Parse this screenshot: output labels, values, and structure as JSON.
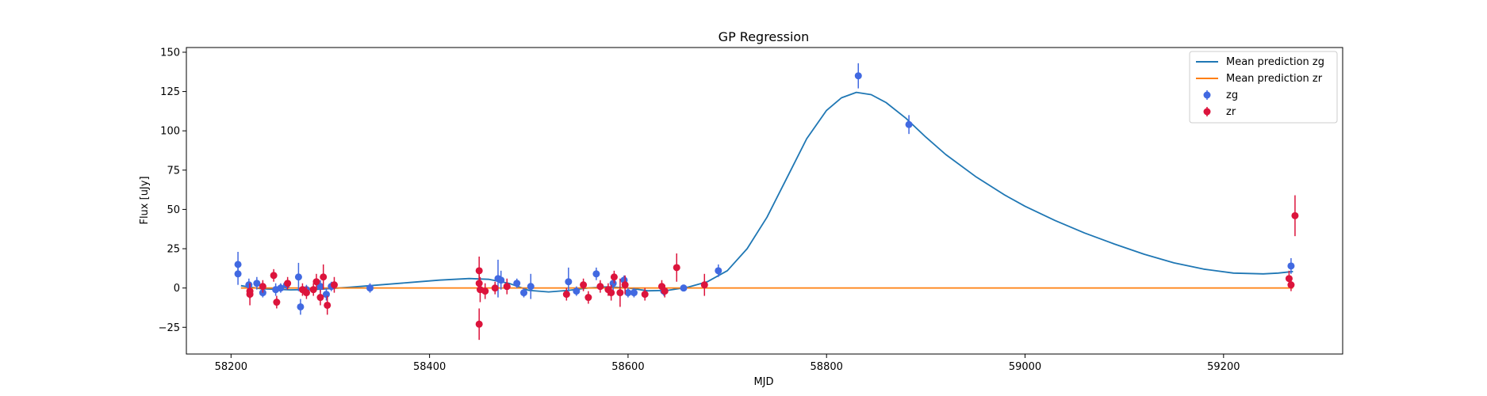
{
  "chart_data": {
    "type": "scatter",
    "title": "GP Regression",
    "xlabel": "MJD",
    "ylabel": "Flux [uJy]",
    "xlim": [
      58155,
      59320
    ],
    "ylim": [
      -42,
      153
    ],
    "xticks": [
      58200,
      58400,
      58600,
      58800,
      59000,
      59200
    ],
    "yticks": [
      -25,
      0,
      25,
      50,
      75,
      100,
      125,
      150
    ],
    "legend_position": "top-right",
    "series": [
      {
        "name": "Mean prediction zg",
        "kind": "line",
        "color": "#1f77b4",
        "x": [
          58210,
          58230,
          58260,
          58290,
          58320,
          58350,
          58380,
          58410,
          58440,
          58460,
          58480,
          58500,
          58520,
          58540,
          58560,
          58580,
          58600,
          58620,
          58640,
          58660,
          58680,
          58700,
          58720,
          58740,
          58760,
          58780,
          58800,
          58815,
          58830,
          58845,
          58860,
          58880,
          58900,
          58920,
          58950,
          58980,
          59000,
          59030,
          59060,
          59090,
          59120,
          59150,
          59180,
          59210,
          59240,
          59255,
          59270
        ],
        "y": [
          1.5,
          -0.5,
          -1.2,
          -0.8,
          0.5,
          2,
          3.5,
          5,
          6,
          5.5,
          3,
          -1.5,
          -2.5,
          -1.5,
          0,
          0.8,
          0,
          -1.8,
          -1.5,
          0.5,
          4,
          11,
          25,
          45,
          70,
          95,
          113,
          121,
          124.5,
          123,
          118,
          108,
          96,
          85,
          71,
          59,
          52,
          43,
          35,
          28,
          21.5,
          16,
          12,
          9.5,
          9,
          9.5,
          10.5
        ]
      },
      {
        "name": "Mean prediction zr",
        "kind": "line",
        "color": "#ff7f0e",
        "x": [
          58210,
          59270
        ],
        "y": [
          0,
          0
        ]
      },
      {
        "name": "zg",
        "kind": "errorbar",
        "color": "#4169e1",
        "points": [
          {
            "x": 58207,
            "y": 15,
            "err": 8
          },
          {
            "x": 58207,
            "y": 9,
            "err": 7
          },
          {
            "x": 58218,
            "y": 2,
            "err": 4
          },
          {
            "x": 58226,
            "y": 3,
            "err": 4
          },
          {
            "x": 58232,
            "y": -3,
            "err": 3
          },
          {
            "x": 58245,
            "y": -1,
            "err": 4
          },
          {
            "x": 58250,
            "y": 0,
            "err": 3
          },
          {
            "x": 58256,
            "y": 2,
            "err": 3
          },
          {
            "x": 58268,
            "y": 7,
            "err": 9
          },
          {
            "x": 58270,
            "y": -12,
            "err": 5
          },
          {
            "x": 58276,
            "y": -1,
            "err": 3
          },
          {
            "x": 58290,
            "y": 1,
            "err": 4
          },
          {
            "x": 58296,
            "y": -4,
            "err": 4
          },
          {
            "x": 58301,
            "y": 1,
            "err": 3
          },
          {
            "x": 58340,
            "y": 0,
            "err": 3
          },
          {
            "x": 58469,
            "y": 6,
            "err": 12
          },
          {
            "x": 58472,
            "y": 5,
            "err": 6
          },
          {
            "x": 58478,
            "y": 1,
            "err": 4
          },
          {
            "x": 58488,
            "y": 3,
            "err": 3
          },
          {
            "x": 58495,
            "y": -3,
            "err": 3
          },
          {
            "x": 58502,
            "y": 1,
            "err": 8
          },
          {
            "x": 58540,
            "y": 4,
            "err": 9
          },
          {
            "x": 58548,
            "y": -2,
            "err": 3
          },
          {
            "x": 58568,
            "y": 9,
            "err": 4
          },
          {
            "x": 58585,
            "y": 3,
            "err": 6
          },
          {
            "x": 58596,
            "y": 5,
            "err": 3
          },
          {
            "x": 58600,
            "y": -3,
            "err": 3
          },
          {
            "x": 58606,
            "y": -3,
            "err": 3
          },
          {
            "x": 58636,
            "y": -2,
            "err": 3
          },
          {
            "x": 58656,
            "y": 0,
            "err": 2
          },
          {
            "x": 58691,
            "y": 11,
            "err": 4
          },
          {
            "x": 58832,
            "y": 135,
            "err": 8
          },
          {
            "x": 58883,
            "y": 104,
            "err": 6
          },
          {
            "x": 59268,
            "y": 14,
            "err": 5
          }
        ]
      },
      {
        "name": "zr",
        "kind": "errorbar",
        "color": "#dc143c",
        "points": [
          {
            "x": 58219,
            "y": -2,
            "err": 5
          },
          {
            "x": 58219,
            "y": -4,
            "err": 7
          },
          {
            "x": 58232,
            "y": 1,
            "err": 4
          },
          {
            "x": 58243,
            "y": 8,
            "err": 4
          },
          {
            "x": 58246,
            "y": -9,
            "err": 4
          },
          {
            "x": 58257,
            "y": 3,
            "err": 4
          },
          {
            "x": 58272,
            "y": -1,
            "err": 4
          },
          {
            "x": 58276,
            "y": -3,
            "err": 4
          },
          {
            "x": 58283,
            "y": -1,
            "err": 4
          },
          {
            "x": 58286,
            "y": 4,
            "err": 5
          },
          {
            "x": 58290,
            "y": -6,
            "err": 5
          },
          {
            "x": 58293,
            "y": 7,
            "err": 8
          },
          {
            "x": 58297,
            "y": -11,
            "err": 6
          },
          {
            "x": 58304,
            "y": 2,
            "err": 5
          },
          {
            "x": 58450,
            "y": 11,
            "err": 9
          },
          {
            "x": 58450,
            "y": 3,
            "err": 6
          },
          {
            "x": 58451,
            "y": -1,
            "err": 8
          },
          {
            "x": 58450,
            "y": -23,
            "err": 10
          },
          {
            "x": 58456,
            "y": -2,
            "err": 5
          },
          {
            "x": 58466,
            "y": 0,
            "err": 4
          },
          {
            "x": 58478,
            "y": 1,
            "err": 5
          },
          {
            "x": 58538,
            "y": -4,
            "err": 4
          },
          {
            "x": 58555,
            "y": 2,
            "err": 4
          },
          {
            "x": 58560,
            "y": -6,
            "err": 4
          },
          {
            "x": 58572,
            "y": 1,
            "err": 4
          },
          {
            "x": 58580,
            "y": -1,
            "err": 4
          },
          {
            "x": 58583,
            "y": -3,
            "err": 5
          },
          {
            "x": 58586,
            "y": 7,
            "err": 4
          },
          {
            "x": 58592,
            "y": -3,
            "err": 9
          },
          {
            "x": 58597,
            "y": 2,
            "err": 6
          },
          {
            "x": 58617,
            "y": -4,
            "err": 4
          },
          {
            "x": 58634,
            "y": 1,
            "err": 4
          },
          {
            "x": 58637,
            "y": -2,
            "err": 4
          },
          {
            "x": 58649,
            "y": 13,
            "err": 9
          },
          {
            "x": 58677,
            "y": 2,
            "err": 7
          },
          {
            "x": 59266,
            "y": 6,
            "err": 5
          },
          {
            "x": 59268,
            "y": 2,
            "err": 4
          },
          {
            "x": 59272,
            "y": 46,
            "err": 13
          }
        ]
      }
    ]
  }
}
